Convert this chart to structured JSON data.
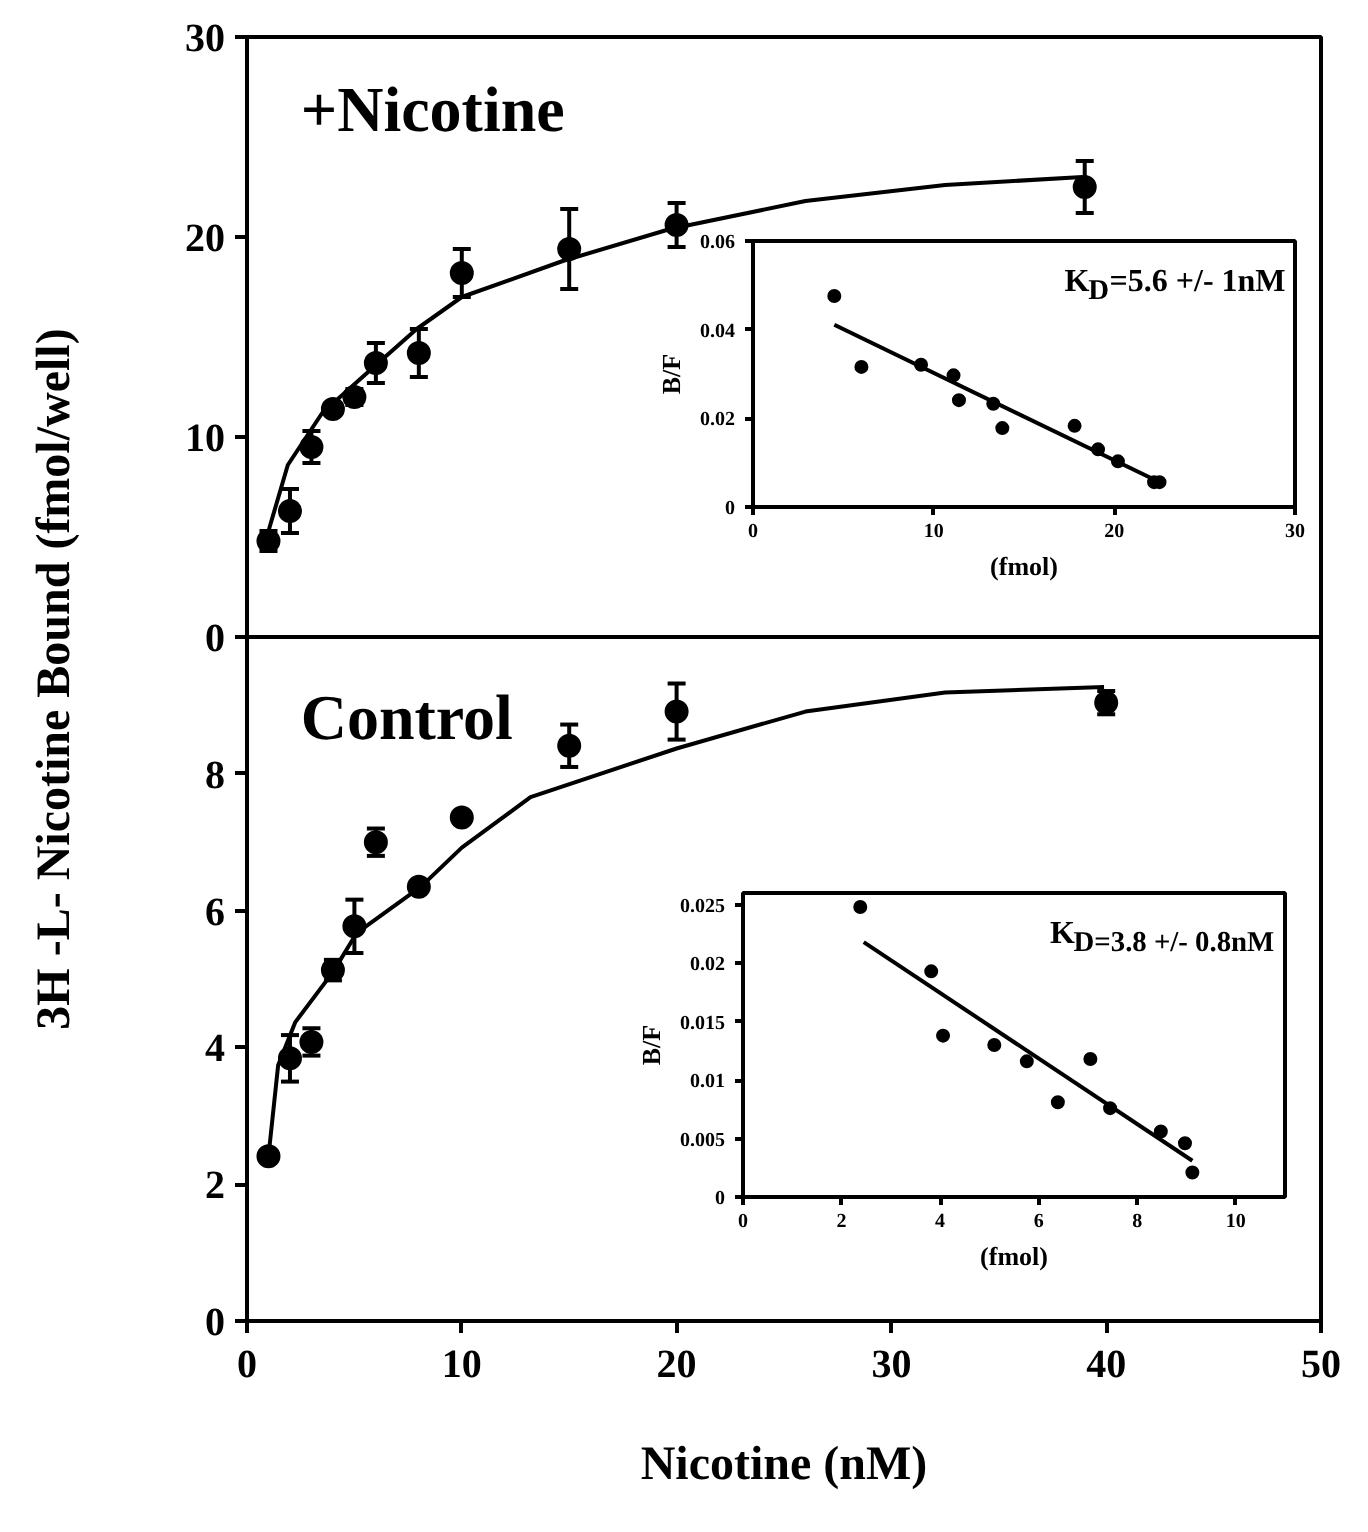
{
  "chart_data": [
    {
      "type": "scatter",
      "title": "+Nicotine",
      "ylabel": "3H -L- Nicotine Bound (fmol/well)",
      "xlim": [
        0,
        50
      ],
      "ylim": [
        0,
        30
      ],
      "xticks": [
        0,
        10,
        20,
        30,
        40,
        50
      ],
      "yticks": [
        0,
        10,
        20,
        30
      ],
      "tick_labels": "y",
      "grid": false,
      "line_style": "solid",
      "series": [
        {
          "marker": "circle",
          "color": "#000000",
          "x": [
            1,
            2,
            3,
            4,
            5,
            6,
            8,
            10,
            15,
            20,
            39
          ],
          "values": [
            4.8,
            6.3,
            9.5,
            11.4,
            12.0,
            13.7,
            14.2,
            18.2,
            19.4,
            20.6,
            22.5
          ],
          "errors": [
            0.5,
            1.1,
            0.8,
            0.3,
            0.4,
            1.0,
            1.2,
            1.2,
            2.0,
            1.1,
            1.3
          ]
        },
        {
          "type": "line",
          "marker": "none",
          "color": "#000000",
          "x": [
            1,
            1.9,
            3.5,
            5.9,
            7.9,
            10,
            14.7,
            19.7,
            26,
            32.5,
            38.9
          ],
          "values": [
            5.3,
            8.6,
            11.2,
            13.5,
            15.4,
            17.0,
            18.8,
            20.4,
            21.8,
            22.6,
            23.0
          ]
        }
      ]
    },
    {
      "type": "scatter",
      "xlabel": "(fmol)",
      "ylabel": "B/F",
      "annotations": [
        "K$_{D}$=5.6 +/- 1nM"
      ],
      "xlim": [
        0,
        30
      ],
      "ylim": [
        0,
        0.06
      ],
      "xticks": [
        0,
        10,
        20,
        30
      ],
      "yticks": [
        0,
        0.02,
        0.04,
        0.06
      ],
      "grid": false,
      "line_style": "solid",
      "series": [
        {
          "marker": "circle",
          "color": "#000000",
          "x": [
            4.5,
            6.0,
            9.3,
            11.1,
            11.4,
            13.3,
            13.8,
            17.8,
            19.1,
            20.2,
            22.2,
            22.5
          ],
          "values": [
            0.0476,
            0.0316,
            0.0321,
            0.0297,
            0.0241,
            0.0233,
            0.0178,
            0.0183,
            0.013,
            0.0103,
            0.0056,
            0.0056
          ]
        },
        {
          "type": "line",
          "marker": "none",
          "color": "#000000",
          "x": [
            4.5,
            22.6
          ],
          "values": [
            0.0411,
            0.0054
          ]
        }
      ]
    },
    {
      "type": "scatter",
      "title": "Control",
      "xlabel": "Nicotine (nM)",
      "xlim": [
        0,
        50
      ],
      "ylim": [
        0,
        10
      ],
      "xticks": [
        0,
        10,
        20,
        30,
        40,
        50
      ],
      "yticks": [
        0,
        2,
        4,
        6,
        8
      ],
      "grid": false,
      "line_style": "solid",
      "series": [
        {
          "marker": "circle",
          "color": "#000000",
          "x": [
            1,
            2,
            3,
            4,
            5,
            6,
            8,
            10,
            15,
            20,
            40
          ],
          "values": [
            2.41,
            3.84,
            4.08,
            5.13,
            5.77,
            7.0,
            6.35,
            7.36,
            8.41,
            8.91,
            9.04
          ],
          "errors": [
            null,
            0.34,
            0.2,
            0.15,
            0.39,
            0.2,
            0.05,
            null,
            0.31,
            0.41,
            0.17
          ]
        },
        {
          "type": "line",
          "marker": "none",
          "color": "#000000",
          "x": [
            1,
            1.45,
            2.25,
            4,
            5.1,
            8.1,
            10,
            13.2,
            20,
            26,
            32.5,
            39.9
          ],
          "values": [
            2.41,
            3.74,
            4.37,
            5.1,
            5.67,
            6.35,
            6.92,
            7.66,
            8.37,
            8.91,
            9.19,
            9.27
          ]
        }
      ]
    },
    {
      "type": "scatter",
      "xlabel": "(fmol)",
      "ylabel": "B/F",
      "annotations": [
        "K$_{D=3.8 +/- 0.8nM}$"
      ],
      "xlim": [
        0,
        11
      ],
      "ylim": [
        0,
        0.026
      ],
      "xticks": [
        0,
        2,
        4,
        6,
        8,
        10
      ],
      "yticks": [
        0,
        0.005,
        0.01,
        0.015,
        0.02,
        0.025
      ],
      "grid": false,
      "line_style": "solid",
      "series": [
        {
          "marker": "circle",
          "color": "#000000",
          "x": [
            2.38,
            3.82,
            4.06,
            5.1,
            5.76,
            6.39,
            7.05,
            7.45,
            8.48,
            8.97,
            9.12
          ],
          "values": [
            0.0248,
            0.0193,
            0.0138,
            0.013,
            0.0116,
            0.0081,
            0.0118,
            0.0076,
            0.0056,
            0.0046,
            0.0021
          ]
        },
        {
          "type": "line",
          "marker": "none",
          "color": "#000000",
          "x": [
            2.45,
            9.12
          ],
          "values": [
            0.0218,
            0.0031
          ]
        }
      ]
    }
  ]
}
